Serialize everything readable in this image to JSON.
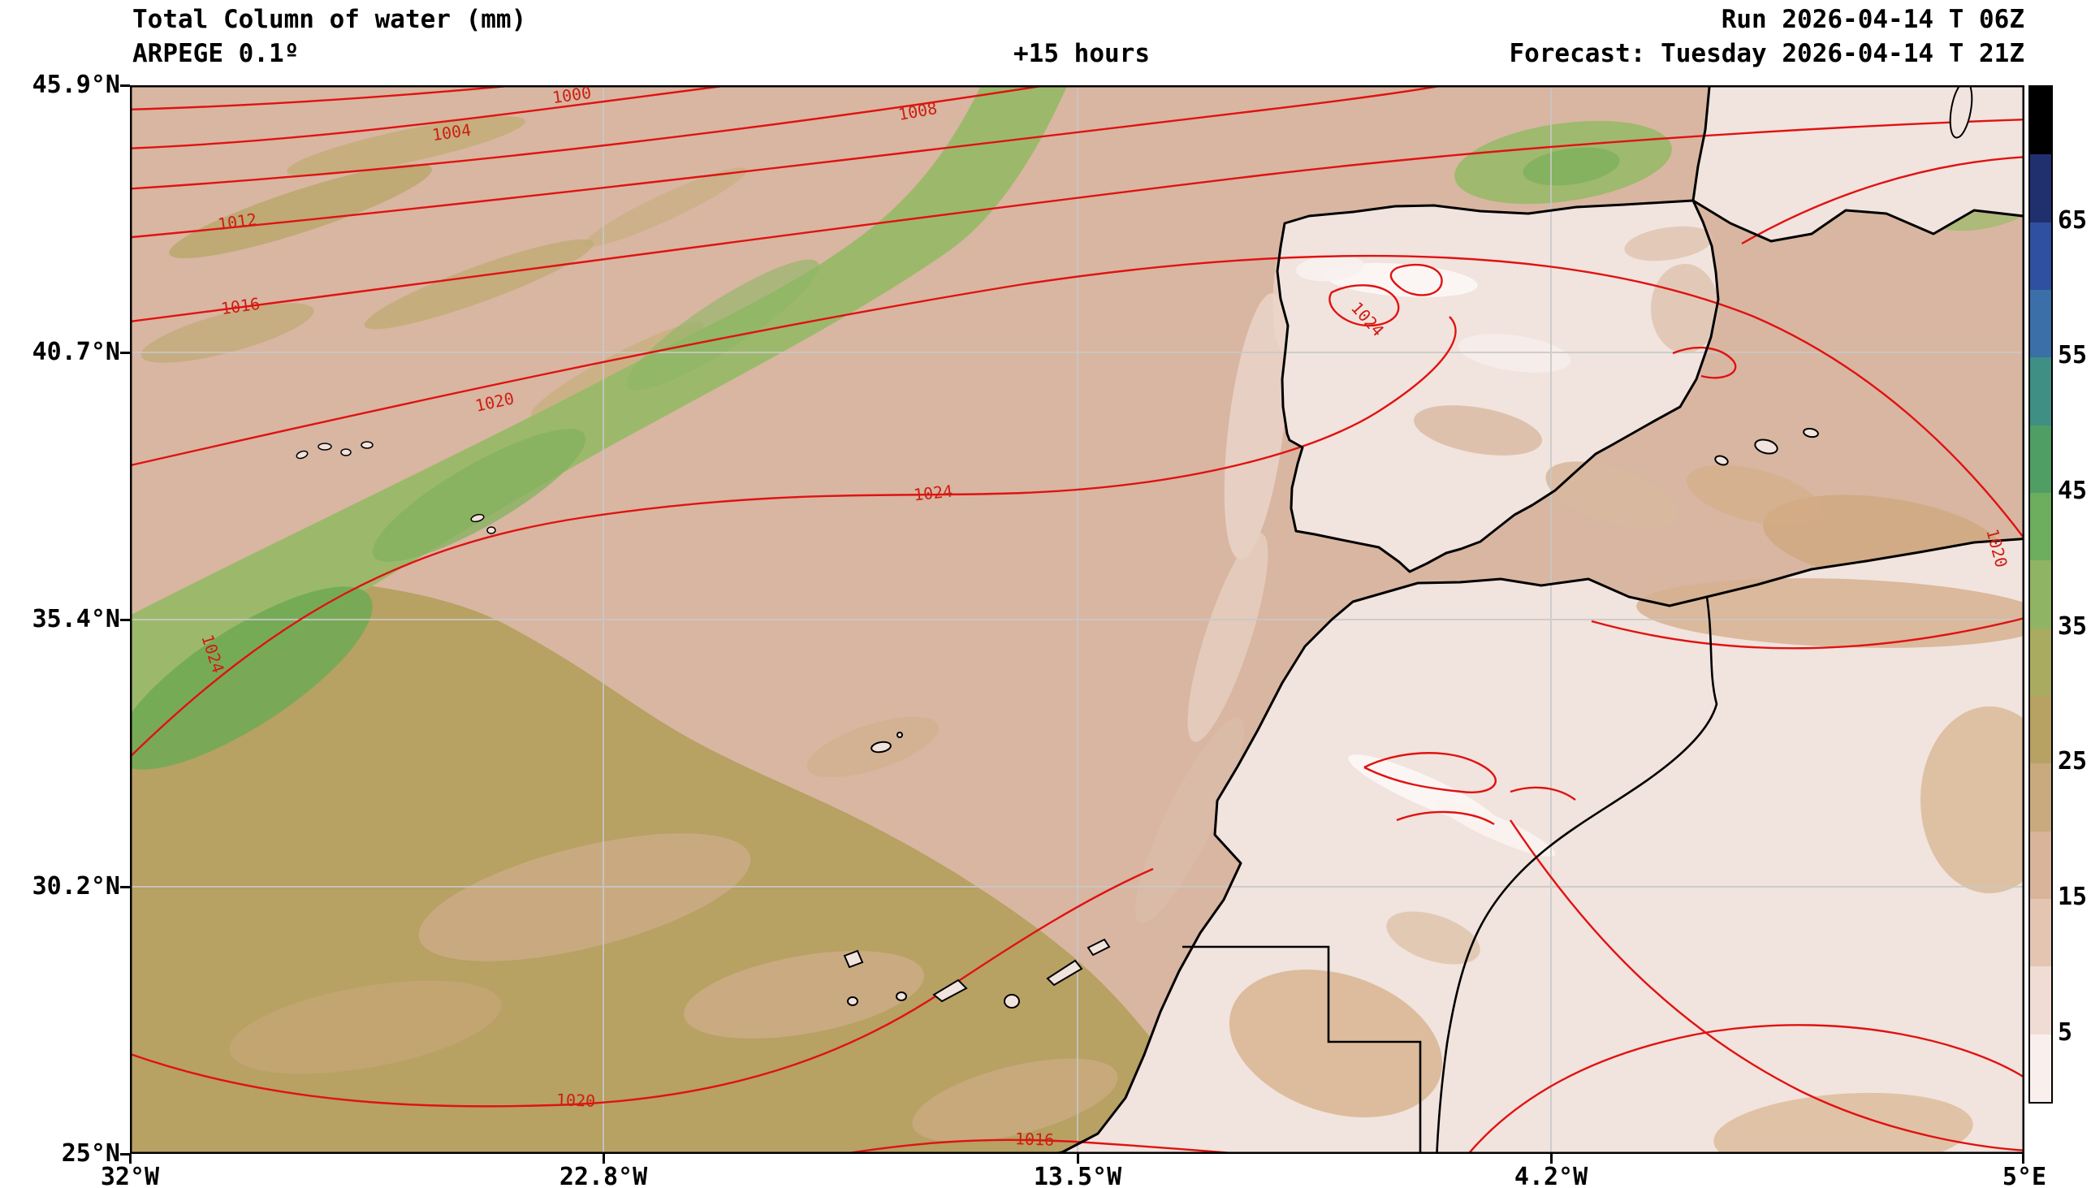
{
  "header": {
    "title": "Total Column of water (mm)",
    "model": "ARPEGE 0.1º",
    "lead_time": "+15 hours",
    "run": "Run 2026-04-14 T 06Z",
    "forecast": "Forecast: Tuesday 2026-04-14 T 21Z"
  },
  "axes": {
    "x_ticks": [
      "32°W",
      "22.8°W",
      "13.5°W",
      "4.2°W",
      "5°E"
    ],
    "y_ticks": [
      "45.9°N",
      "40.7°N",
      "35.4°N",
      "30.2°N",
      "25°N"
    ]
  },
  "map": {
    "red_contour_label_instances": [
      "1000",
      "1004",
      "1008",
      "1012",
      "1016",
      "1020",
      "1024",
      "1024",
      "1024",
      "1020",
      "1020",
      "1016"
    ]
  },
  "chart_data": {
    "type": "heatmap",
    "subtype": "filled-contour weather map with isobar overlay",
    "title": "Total Column of water (mm)",
    "model": "ARPEGE 0.1º",
    "run": "2026-04-14 T 06Z",
    "forecast_valid": "Tuesday 2026-04-14 T 21Z",
    "lead_time_hours": 15,
    "units": "mm",
    "map_extent": {
      "west": "32°W",
      "east": "5°E",
      "south": "25°N",
      "north": "45.9°N"
    },
    "x_ticks": [
      "32°W",
      "22.8°W",
      "13.5°W",
      "4.2°W",
      "5°E"
    ],
    "y_ticks": [
      "45.9°N",
      "40.7°N",
      "35.4°N",
      "30.2°N",
      "25°N"
    ],
    "grid": true,
    "colorbar": {
      "position": "right",
      "tick_labels": [
        65,
        55,
        45,
        35,
        25,
        15,
        5
      ],
      "level_step_mm": 5,
      "value_range_mm": [
        0,
        70
      ],
      "colors_bottom_to_top": [
        "#f9efec",
        "#f0dcd4",
        "#e3c5b2",
        "#d9b39a",
        "#c9a97e",
        "#b7a163",
        "#a8ab60",
        "#8eb464",
        "#6cad5e",
        "#4f9e63",
        "#3f8f85",
        "#3a6fa8",
        "#2f4fa0",
        "#20306e",
        "#000000"
      ]
    },
    "red_contour_levels_hPa": [
      1000,
      1004,
      1008,
      1012,
      1016,
      1020,
      1024
    ],
    "red_contour_color": "#e01212",
    "coastline_color": "#000000"
  }
}
